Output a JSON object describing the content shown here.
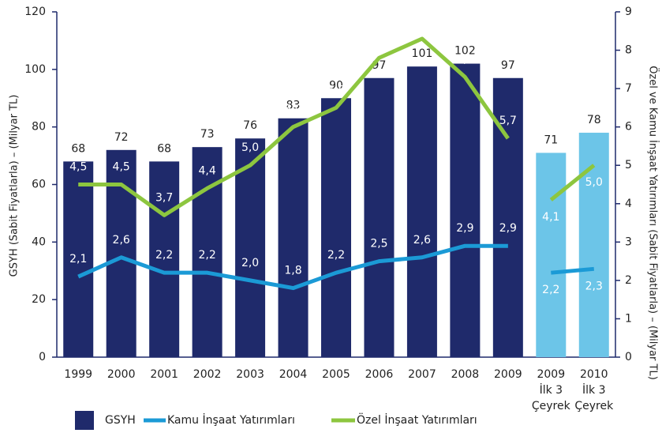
{
  "chart_data": {
    "type": "bar_line",
    "categories": [
      [
        "1999"
      ],
      [
        "2000"
      ],
      [
        "2001"
      ],
      [
        "2002"
      ],
      [
        "2003"
      ],
      [
        "2004"
      ],
      [
        "2005"
      ],
      [
        "2006"
      ],
      [
        "2007"
      ],
      [
        "2008"
      ],
      [
        "2009"
      ],
      [
        "2009",
        "İlk 3",
        "Çeyrek"
      ],
      [
        "2010",
        "İlk 3",
        "Çeyrek"
      ]
    ],
    "ylabel": "GSYH (Sabit Fiyatlarla) – (Milyar TL)",
    "y2label": "Özel ve Kamu İnşaat Yatırımları  (Sabit Fiyatlarla) – (Milyar TL)",
    "ylim": [
      0,
      120
    ],
    "yticks": [
      0,
      20,
      40,
      60,
      80,
      100,
      120
    ],
    "y2lim": [
      0,
      9
    ],
    "y2ticks": [
      0,
      1,
      2,
      3,
      4,
      5,
      6,
      7,
      8,
      9
    ],
    "series": [
      {
        "name": "GSYH",
        "type": "bar",
        "color": "#1f2a6b",
        "colors": [
          "#1f2a6b",
          "#1f2a6b",
          "#1f2a6b",
          "#1f2a6b",
          "#1f2a6b",
          "#1f2a6b",
          "#1f2a6b",
          "#1f2a6b",
          "#1f2a6b",
          "#1f2a6b",
          "#1f2a6b",
          "#6cc5e8",
          "#6cc5e8"
        ],
        "values": [
          68,
          72,
          68,
          73,
          76,
          83,
          90,
          97,
          101,
          102,
          97,
          71,
          78
        ]
      },
      {
        "name": "Kamu İnşaat Yatırımları",
        "type": "line",
        "axis": "y2",
        "color": "#1b9ad6",
        "break_before": 11,
        "values": [
          2.1,
          2.6,
          2.2,
          2.2,
          2.0,
          1.8,
          2.2,
          2.5,
          2.6,
          2.9,
          2.9,
          2.2,
          2.3
        ],
        "value_labels": [
          "2,1",
          "2,6",
          "2,2",
          "2,2",
          "2,0",
          "1,8",
          "2,2",
          "2,5",
          "2,6",
          "2,9",
          "2,9",
          "2,2",
          "2,3"
        ]
      },
      {
        "name": "Özel İnşaat Yatırımları",
        "type": "line",
        "axis": "y2",
        "color": "#8dc63f",
        "break_before": 11,
        "values": [
          4.5,
          4.5,
          3.7,
          4.4,
          5.0,
          6.0,
          6.5,
          7.8,
          8.3,
          7.3,
          5.7,
          4.1,
          5.0
        ],
        "value_labels": [
          "4,5",
          "4,5",
          "3,7",
          "4,4",
          "5,0",
          "6,0",
          "6,5",
          "7,8",
          "8,3",
          "7,3",
          "5,7",
          "4,1",
          "5,0"
        ]
      }
    ]
  }
}
